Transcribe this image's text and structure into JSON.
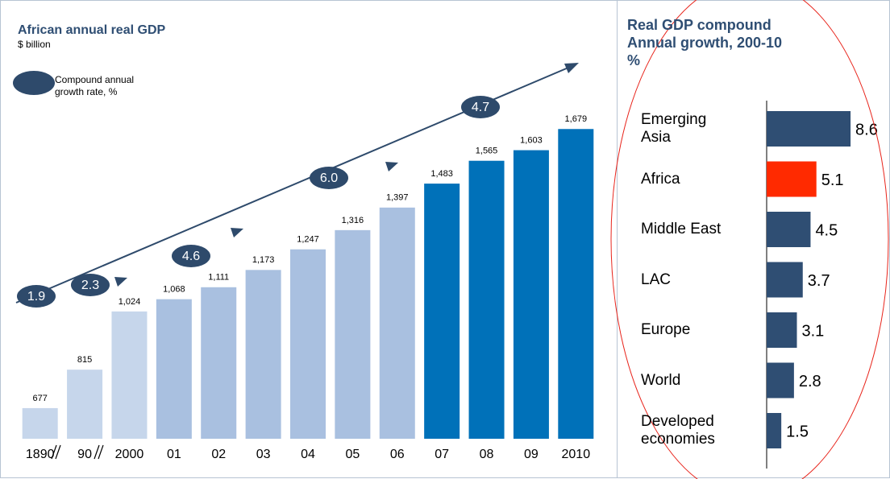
{
  "chart_data": [
    {
      "type": "bar",
      "title": "African annual real GDP",
      "subtitle": "$ billion",
      "categories": [
        "1890",
        "90",
        "2000",
        "01",
        "02",
        "03",
        "04",
        "05",
        "06",
        "07",
        "08",
        "09",
        "2010"
      ],
      "values": [
        677,
        815,
        1024,
        1068,
        1111,
        1173,
        1247,
        1316,
        1397,
        1483,
        1565,
        1603,
        1679
      ],
      "value_labels": [
        "677",
        "815",
        "1,024",
        "1,068",
        "1,111",
        "1,173",
        "1,247",
        "1,316",
        "1,397",
        "1,483",
        "1,565",
        "1,603",
        "1,679"
      ],
      "colors": [
        "#c6d6eb",
        "#c6d6eb",
        "#c6d6eb",
        "#a9c0e0",
        "#a9c0e0",
        "#a9c0e0",
        "#a9c0e0",
        "#a9c0e0",
        "#a9c0e0",
        "#0071b9",
        "#0071b9",
        "#0071b9",
        "#0071b9"
      ],
      "ylim": [
        567,
        1700
      ],
      "annotation": {
        "label": "Compound annual growth rate, %",
        "values": [
          1.9,
          2.3,
          4.6,
          6,
          4.7
        ],
        "value_labels": [
          "1.9",
          "2.3",
          "4.6",
          "6.0",
          "4.7"
        ],
        "color": "#2e4a6b"
      }
    },
    {
      "type": "hbar",
      "title": "Real GDP compound Annual growth, 200-10 %",
      "categories": [
        "Emerging Asia",
        "Africa",
        "Middle East",
        "LAC",
        "Europe",
        "World",
        "Developed economies"
      ],
      "values": [
        8.6,
        5.1,
        4.5,
        3.7,
        3.1,
        2.8,
        1.5
      ],
      "colors": [
        "#2f4e73",
        "#ff2a00",
        "#2f4e73",
        "#2f4e73",
        "#2f4e73",
        "#2f4e73",
        "#2f4e73"
      ],
      "xlim": [
        0,
        10
      ]
    }
  ]
}
